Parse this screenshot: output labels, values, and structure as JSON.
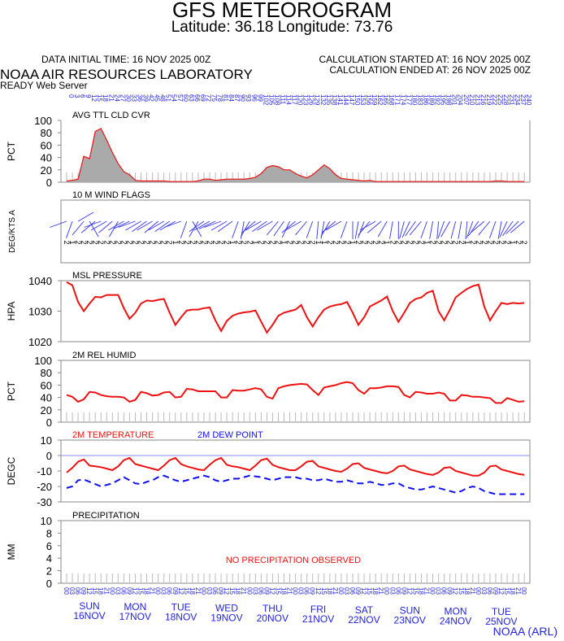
{
  "header": {
    "title": "GFS METEOROGRAM",
    "subtitle": "Latitude: 36.18 Longitude:  73.76",
    "initial_time": "DATA INITIAL TIME: 16 NOV 2025 00Z",
    "calc_started": "CALCULATION STARTED AT: 16 NOV 2025 00Z",
    "calc_ended": "CALCULATION ENDED AT: 26 NOV 2025 00Z",
    "org": "NOAA AIR RESOURCES LABORATORY",
    "server": "READY Web Server",
    "footer": "NOAA (ARL)"
  },
  "colors": {
    "line": "#ee1111",
    "dew": "#1111ee",
    "label_blue": "#2222dd",
    "fill": "#aaaaaa",
    "zero_line": "#8888ff"
  },
  "forecast_hours": [
    "0",
    "3",
    "6",
    "9",
    "12",
    "15",
    "18",
    "21",
    "24",
    "27",
    "30",
    "33",
    "36",
    "39",
    "42",
    "45",
    "48",
    "51",
    "54",
    "57",
    "60",
    "63",
    "66",
    "69",
    "72",
    "75",
    "78",
    "81",
    "84",
    "87",
    "90",
    "93",
    "96",
    "99",
    "102",
    "105",
    "108",
    "111",
    "114",
    "117",
    "120",
    "123",
    "126",
    "129",
    "132",
    "135",
    "138",
    "141",
    "144",
    "147",
    "150",
    "153",
    "156",
    "159",
    "162",
    "165",
    "168",
    "171",
    "174",
    "177",
    "180",
    "183",
    "186",
    "189",
    "192",
    "195",
    "198",
    "201",
    "204",
    "207",
    "210",
    "213",
    "216",
    "219",
    "222",
    "225",
    "228",
    "231",
    "234",
    "237",
    "240"
  ],
  "hour_of_day": [
    "00",
    "03",
    "06",
    "09",
    "12",
    "15",
    "18",
    "21"
  ],
  "days": [
    {
      "dow": "SUN",
      "date": "16NOV"
    },
    {
      "dow": "MON",
      "date": "17NOV"
    },
    {
      "dow": "TUE",
      "date": "18NOV"
    },
    {
      "dow": "WED",
      "date": "19NOV"
    },
    {
      "dow": "THU",
      "date": "20NOV"
    },
    {
      "dow": "FRI",
      "date": "21NOV"
    },
    {
      "dow": "SAT",
      "date": "22NOV"
    },
    {
      "dow": "SUN",
      "date": "23NOV"
    },
    {
      "dow": "MON",
      "date": "24NOV"
    },
    {
      "dow": "TUE",
      "date": "25NOV"
    }
  ],
  "chart_data": [
    {
      "type": "area",
      "title": "AVG TTL CLD CVR",
      "ylabel": "PCT",
      "ylim": [
        0,
        100
      ],
      "yticks": [
        "100",
        "80",
        "60",
        "40",
        "20",
        "0"
      ],
      "values": [
        2,
        3,
        5,
        42,
        38,
        82,
        87,
        68,
        48,
        30,
        17,
        12,
        3,
        2,
        2,
        2,
        2,
        2,
        1,
        1,
        1,
        1,
        1,
        2,
        5,
        5,
        3,
        4,
        5,
        5,
        5,
        5,
        6,
        8,
        14,
        24,
        27,
        25,
        20,
        20,
        14,
        10,
        7,
        12,
        20,
        28,
        22,
        12,
        6,
        5,
        4,
        3,
        2,
        3,
        1,
        1,
        1,
        1,
        1,
        1,
        1,
        1,
        1,
        1,
        1,
        1,
        1,
        1,
        1,
        1,
        1,
        1,
        1,
        1,
        1,
        2,
        2,
        1,
        1,
        1,
        1
      ]
    },
    {
      "type": "wind",
      "title": "10 M  WIND FLAGS",
      "ylabel": "DEG/KTS  A",
      "directions": [
        250,
        200,
        60,
        220,
        150,
        230,
        250,
        240,
        230,
        210,
        240,
        245,
        250,
        240,
        235,
        240,
        230,
        240,
        235,
        240,
        250,
        200,
        150,
        210,
        235,
        240,
        245,
        250,
        240,
        235,
        200,
        190,
        210,
        230,
        240,
        235,
        240,
        220,
        215,
        205,
        230,
        240,
        220,
        200,
        185,
        190,
        210,
        230,
        240,
        200,
        180,
        190,
        200,
        220,
        240,
        230,
        210,
        190,
        180,
        195,
        205,
        215,
        220,
        200,
        190,
        185,
        200,
        210,
        195,
        190,
        185,
        200,
        215,
        230,
        220,
        200,
        190,
        205,
        215,
        225,
        230
      ],
      "speed_digits": [
        "2",
        "1",
        "2",
        "2",
        "2",
        "2",
        "2",
        "2",
        "2",
        "2",
        "2",
        "2",
        "2",
        "2",
        "2",
        "2",
        "2",
        "2",
        "2",
        "1",
        "2",
        "2",
        "2",
        "2",
        "2",
        "2",
        "2",
        "2",
        "2",
        "1",
        "2",
        "2",
        "2",
        "1",
        "2",
        "2",
        "2",
        "2",
        "1",
        "2",
        "2",
        "2",
        "2",
        "2",
        "1",
        "1",
        "2",
        "2",
        "2",
        "2",
        "1",
        "2",
        "2",
        "2",
        "2",
        "2",
        "1",
        "2",
        "2",
        "2",
        "2",
        "2",
        "2",
        "1",
        "2",
        "2",
        "2",
        "2",
        "2",
        "2",
        "1",
        "2",
        "2",
        "2",
        "2",
        "2",
        "2",
        "2",
        "1",
        "2",
        "2"
      ]
    },
    {
      "type": "line",
      "title": "MSL PRESSURE",
      "ylabel": "HPA",
      "ylim": [
        1020,
        1040
      ],
      "yticks": [
        "1040",
        "1030",
        "1020"
      ],
      "values": [
        1039.5,
        1038.5,
        1033,
        1030,
        1032.5,
        1034.7,
        1034.5,
        1035.3,
        1035.3,
        1035.3,
        1031,
        1027.5,
        1029.5,
        1032.5,
        1033.5,
        1033.3,
        1033.7,
        1034,
        1029.5,
        1025.5,
        1028,
        1030.2,
        1030.5,
        1030.5,
        1031,
        1031.2,
        1027,
        1023.5,
        1026.8,
        1028.5,
        1029.2,
        1029.6,
        1029.8,
        1030.2,
        1026.5,
        1023,
        1025.5,
        1028.5,
        1029.5,
        1030,
        1030.5,
        1032,
        1028,
        1025,
        1028,
        1030.5,
        1031.5,
        1032,
        1032.3,
        1033,
        1029.5,
        1025.5,
        1028,
        1031.5,
        1032.5,
        1033.5,
        1034.8,
        1030,
        1026.5,
        1029.5,
        1032.7,
        1034,
        1034.5,
        1036,
        1036.7,
        1030,
        1027,
        1030.5,
        1034.5,
        1036,
        1037.3,
        1038.2,
        1038.7,
        1031.5,
        1027,
        1030,
        1032.7,
        1032.3,
        1032.7,
        1032.5,
        1032.7
      ]
    },
    {
      "type": "line",
      "title": "2M REL HUMID",
      "ylabel": "PCT",
      "ylim": [
        0,
        100
      ],
      "yticks": [
        "100",
        "80",
        "60",
        "40",
        "20",
        "0"
      ],
      "values": [
        44,
        41,
        33,
        37,
        49,
        48,
        44,
        42,
        41,
        41,
        40,
        33,
        36,
        49,
        47,
        43,
        44,
        48,
        49,
        40,
        41,
        54,
        53,
        50,
        50,
        50,
        50,
        40,
        40,
        52,
        51,
        51,
        53,
        55,
        53,
        41,
        38,
        55,
        58,
        60,
        61,
        62,
        61,
        52,
        44,
        56,
        58,
        60,
        63,
        65,
        63,
        52,
        46,
        55,
        55,
        56,
        58,
        58,
        57,
        44,
        40,
        49,
        48,
        46,
        46,
        48,
        46,
        35,
        35,
        44,
        43,
        41,
        41,
        40,
        39,
        31,
        31,
        39,
        36,
        33,
        34
      ]
    },
    {
      "type": "line",
      "title": "2M TEMPERATURE",
      "title2": "2M   DEW POINT",
      "ylabel": "DEGC",
      "ylim": [
        -30,
        10
      ],
      "yticks": [
        "10",
        "0",
        "-10",
        "-20",
        "-30"
      ],
      "series": [
        {
          "name": "2M TEMPERATURE",
          "values": [
            -11,
            -8,
            -4,
            -2.5,
            -6.5,
            -7,
            -7.5,
            -8.5,
            -9.5,
            -7,
            -3,
            -1.5,
            -5.5,
            -6.5,
            -7.5,
            -8.5,
            -9.5,
            -6.5,
            -3,
            -1.5,
            -5.5,
            -7,
            -8,
            -9,
            -9.5,
            -6,
            -3,
            -1.5,
            -6,
            -7,
            -7.5,
            -8.5,
            -9.5,
            -6.5,
            -3,
            -2,
            -6,
            -7.5,
            -8.5,
            -9.5,
            -9.5,
            -7,
            -4,
            -3.5,
            -7,
            -8,
            -9,
            -10,
            -10.5,
            -8.5,
            -5.5,
            -5,
            -8,
            -9,
            -10,
            -11,
            -11.5,
            -10,
            -7,
            -6.5,
            -9,
            -10,
            -11,
            -12,
            -12.5,
            -11,
            -8,
            -7.5,
            -10,
            -11,
            -12,
            -13,
            -13,
            -11,
            -7,
            -6.5,
            -9,
            -10,
            -11,
            -12,
            -12.5
          ]
        },
        {
          "name": "2M DEW POINT",
          "values": [
            -21,
            -20,
            -16,
            -15.5,
            -17,
            -18.5,
            -20,
            -19,
            -18,
            -16,
            -14,
            -16,
            -18,
            -18.5,
            -17,
            -16,
            -14,
            -13,
            -14.5,
            -16,
            -17,
            -16,
            -15,
            -14,
            -13,
            -14,
            -16,
            -17,
            -16,
            -15,
            -15,
            -14,
            -13,
            -13.5,
            -14,
            -15,
            -16,
            -15,
            -14,
            -14,
            -14,
            -15,
            -15,
            -16,
            -16,
            -15,
            -16,
            -17,
            -17,
            -16,
            -17,
            -18,
            -18,
            -17,
            -18,
            -19,
            -19,
            -18,
            -18,
            -20,
            -21,
            -22,
            -22,
            -21,
            -20,
            -21,
            -22,
            -23,
            -24,
            -23,
            -21,
            -20,
            -21,
            -23,
            -24,
            -25,
            -25,
            -25,
            -25,
            -25,
            -25
          ]
        }
      ]
    },
    {
      "type": "line",
      "title": "PRECIPITATION",
      "ylabel": "MM",
      "ylim": [
        0,
        10
      ],
      "yticks": [
        "10",
        "8",
        "6",
        "4",
        "2",
        "0"
      ],
      "annotation": "NO PRECIPITATION OBSERVED",
      "values": []
    }
  ]
}
